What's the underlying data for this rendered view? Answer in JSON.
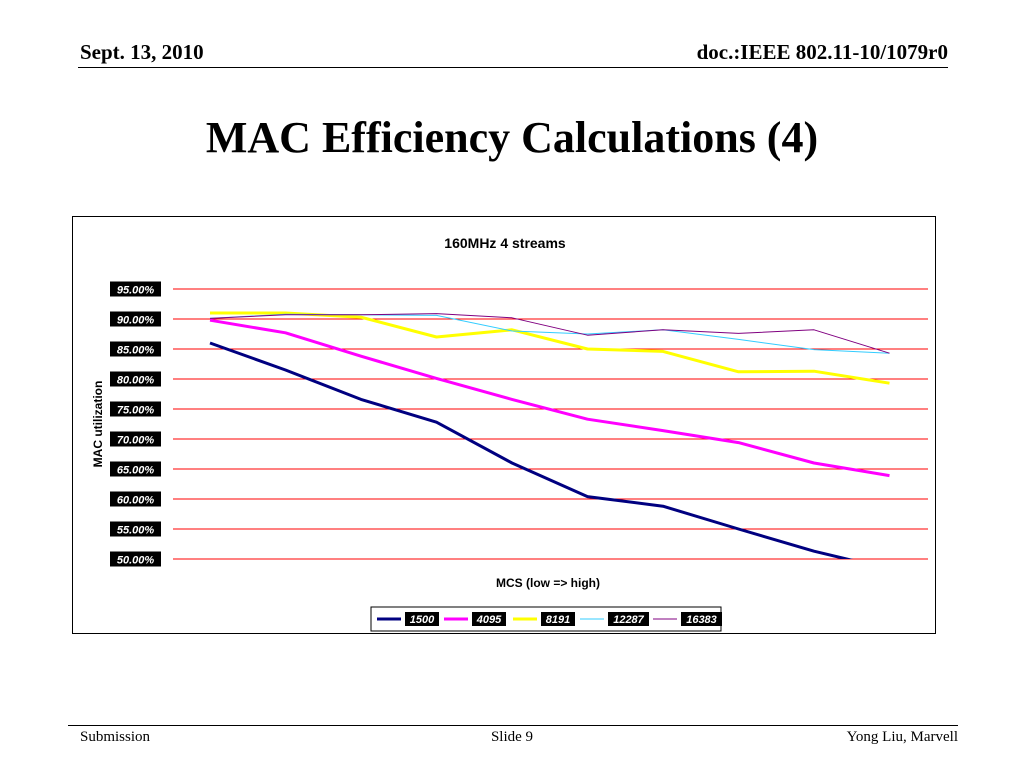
{
  "header": {
    "date": "Sept. 13, 2010",
    "doc": "doc.:IEEE 802.11-10/1079r0"
  },
  "slide_title": "MAC Efficiency Calculations (4)",
  "footer": {
    "left": "Submission",
    "center": "Slide 9",
    "right": "Yong Liu, Marvell"
  },
  "colors": {
    "gridline": "#ff0000",
    "tick_label_bg": "#000000",
    "tick_label_text": "#ffffff"
  },
  "chart_data": {
    "type": "line",
    "title": "160MHz 4 streams",
    "xlabel": "MCS (low => high)",
    "ylabel": "MAC utilization",
    "ylim": [
      50,
      95
    ],
    "yticks": [
      "95.00%",
      "90.00%",
      "85.00%",
      "80.00%",
      "75.00%",
      "70.00%",
      "65.00%",
      "60.00%",
      "55.00%",
      "50.00%"
    ],
    "ytick_values": [
      95,
      90,
      85,
      80,
      75,
      70,
      65,
      60,
      55,
      50
    ],
    "x": [
      1,
      2,
      3,
      4,
      5,
      6,
      7,
      8,
      9,
      10
    ],
    "grid": true,
    "legend_position": "bottom",
    "series": [
      {
        "name": "1500",
        "color": "#000080",
        "width": 3,
        "values": [
          86.0,
          81.5,
          76.6,
          72.8,
          66.0,
          60.4,
          58.8,
          55.0,
          51.3,
          48.3
        ]
      },
      {
        "name": "4095",
        "color": "#ff00ff",
        "width": 3,
        "values": [
          89.8,
          87.7,
          83.8,
          80.1,
          76.6,
          73.3,
          71.4,
          69.4,
          66.0,
          63.9
        ]
      },
      {
        "name": "8191",
        "color": "#ffff00",
        "width": 3,
        "values": [
          91.0,
          91.0,
          90.3,
          87.0,
          88.2,
          85.0,
          84.6,
          81.2,
          81.3,
          79.3
        ]
      },
      {
        "name": "12287",
        "color": "#33ccff",
        "width": 1,
        "values": [
          90.1,
          90.8,
          90.7,
          90.6,
          88.0,
          87.5,
          88.2,
          86.6,
          84.9,
          84.3
        ]
      },
      {
        "name": "16383",
        "color": "#800080",
        "width": 1,
        "values": [
          90.1,
          90.7,
          90.7,
          90.9,
          90.2,
          87.3,
          88.2,
          87.6,
          88.2,
          84.3
        ]
      }
    ]
  }
}
